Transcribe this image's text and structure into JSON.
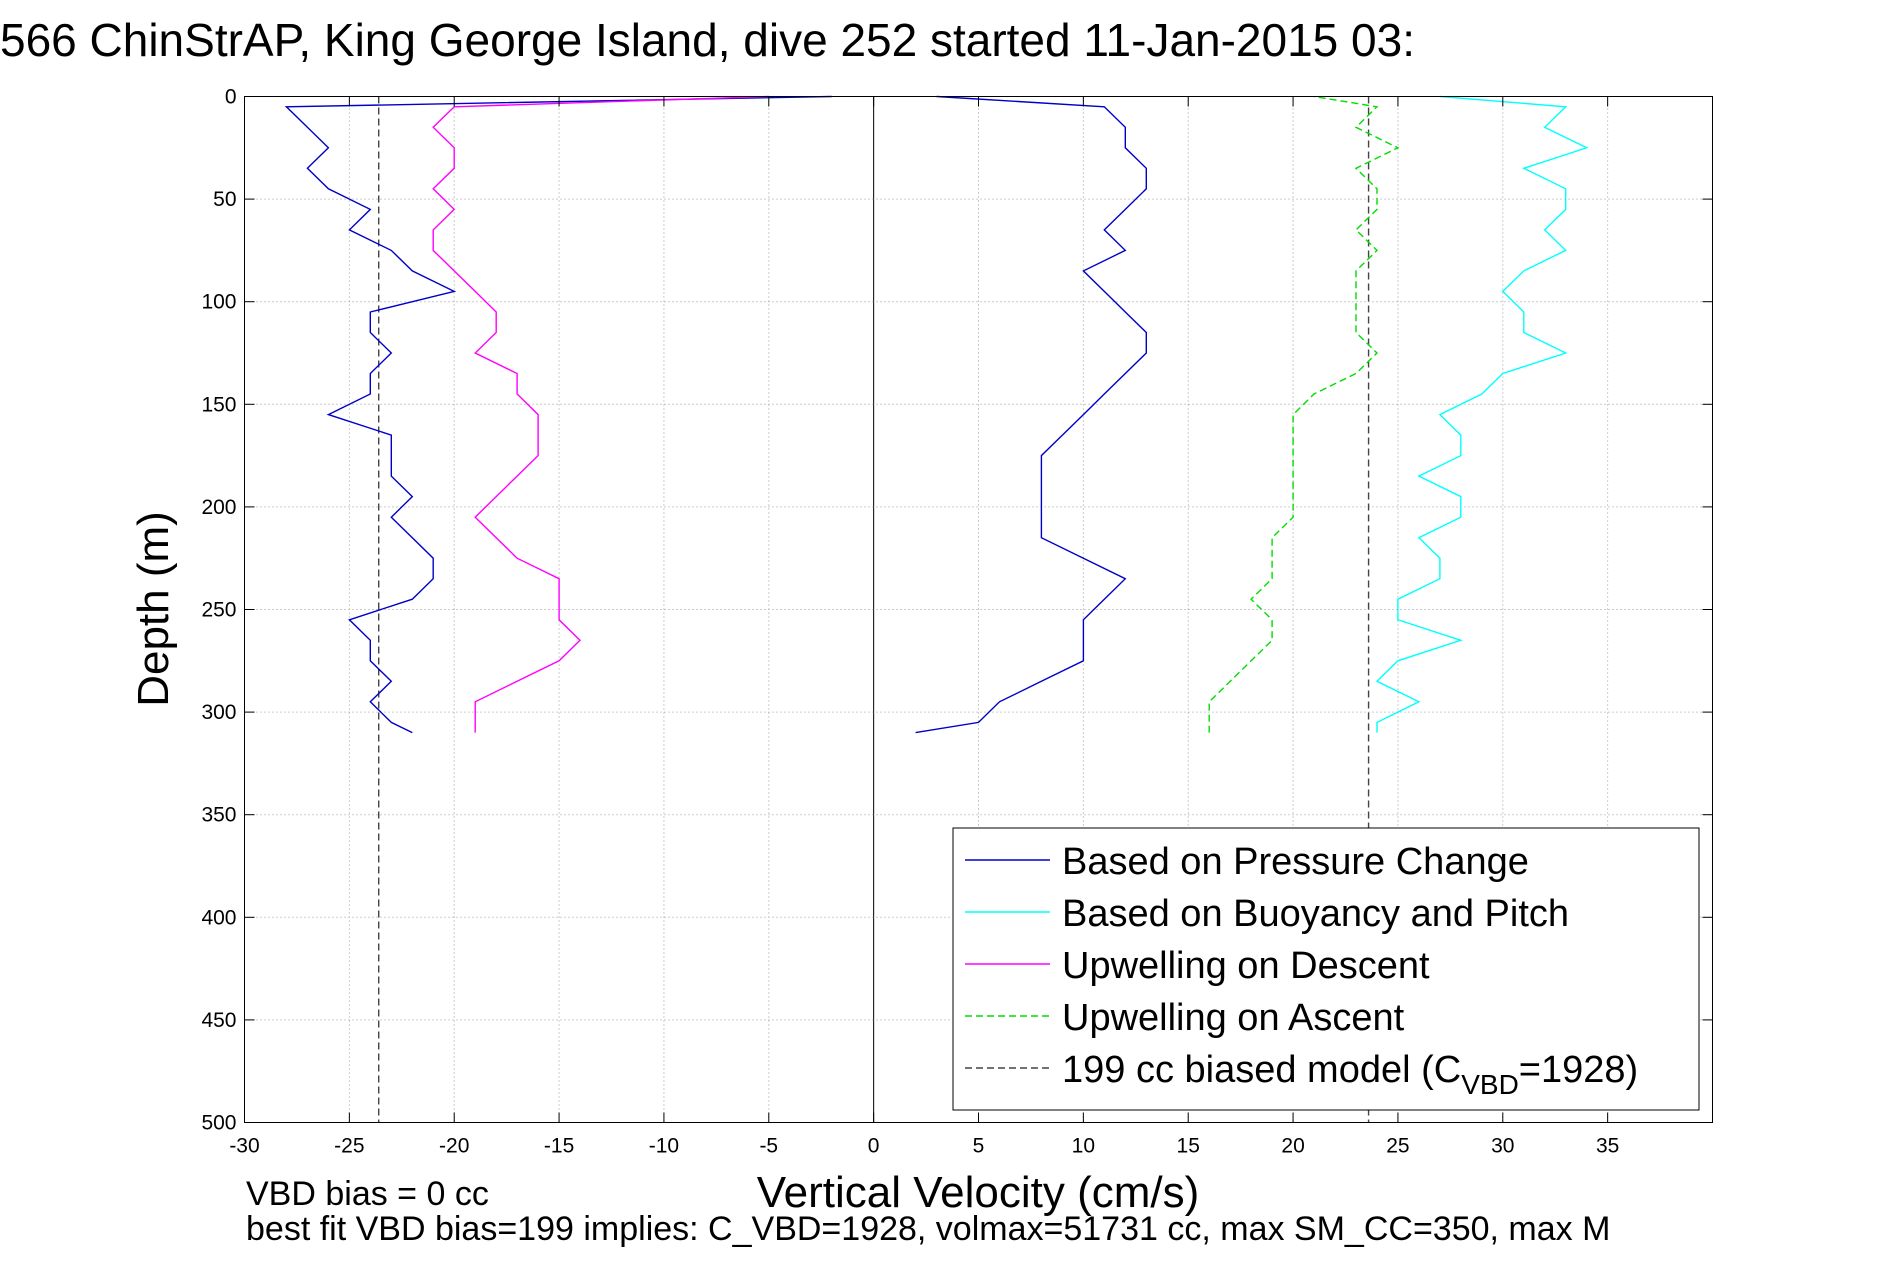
{
  "chart_data": {
    "type": "line",
    "title": "566 ChinStrAP, King George Island, dive 252 started 11-Jan-2015 03:",
    "xlabel": "Vertical Velocity (cm/s)",
    "ylabel": "Depth (m)",
    "xlim": [
      -30,
      40
    ],
    "ylim": [
      0,
      500
    ],
    "y_reversed": true,
    "grid": true,
    "legend_position": "bottom-right",
    "x_ticks": [
      "-30",
      "-25",
      "-20",
      "-15",
      "-10",
      "-5",
      "0",
      "5",
      "10",
      "15",
      "20",
      "25",
      "30",
      "35"
    ],
    "y_ticks": [
      "0",
      "50",
      "100",
      "150",
      "200",
      "250",
      "300",
      "350",
      "400",
      "450",
      "500"
    ],
    "footer_lines": [
      "VBD bias = 0 cc",
      "best fit VBD bias=199 implies: C_VBD=1928, volmax=51731 cc, max SM_CC=350, max M"
    ],
    "series": [
      {
        "name": "Based on Pressure Change",
        "color": "#0000c8",
        "style": "solid",
        "descent": {
          "depth": [
            0,
            5,
            15,
            25,
            35,
            45,
            55,
            65,
            75,
            85,
            95,
            105,
            115,
            125,
            135,
            145,
            155,
            165,
            175,
            185,
            195,
            205,
            215,
            225,
            235,
            245,
            255,
            265,
            275,
            285,
            295,
            305,
            310
          ],
          "velocity": [
            -2,
            -28,
            -27,
            -26,
            -27,
            -26,
            -24,
            -25,
            -23,
            -22,
            -20,
            -24,
            -24,
            -23,
            -24,
            -24,
            -26,
            -23,
            -23,
            -23,
            -22,
            -23,
            -22,
            -21,
            -21,
            -22,
            -25,
            -24,
            -24,
            -23,
            -24,
            -23,
            -22
          ]
        },
        "ascent": {
          "depth": [
            310,
            305,
            295,
            285,
            275,
            265,
            255,
            245,
            235,
            225,
            215,
            205,
            195,
            185,
            175,
            165,
            155,
            145,
            135,
            125,
            115,
            105,
            95,
            85,
            75,
            65,
            55,
            45,
            35,
            25,
            15,
            5,
            0
          ],
          "velocity": [
            2,
            5,
            6,
            8,
            10,
            10,
            10,
            11,
            12,
            10,
            8,
            8,
            8,
            8,
            8,
            9,
            10,
            11,
            12,
            13,
            13,
            12,
            11,
            10,
            12,
            11,
            12,
            13,
            13,
            12,
            12,
            11,
            3
          ]
        }
      },
      {
        "name": "Based on Buoyancy and Pitch",
        "color": "#00ffff",
        "style": "solid",
        "ascent": {
          "depth": [
            310,
            305,
            295,
            285,
            275,
            265,
            255,
            245,
            235,
            225,
            215,
            205,
            195,
            185,
            175,
            165,
            155,
            145,
            135,
            125,
            115,
            105,
            95,
            85,
            75,
            65,
            55,
            45,
            35,
            25,
            15,
            5,
            0
          ],
          "velocity": [
            24,
            24,
            26,
            24,
            25,
            28,
            25,
            25,
            27,
            27,
            26,
            28,
            28,
            26,
            28,
            28,
            27,
            29,
            30,
            33,
            31,
            31,
            30,
            31,
            33,
            32,
            33,
            33,
            31,
            34,
            32,
            33,
            27
          ]
        }
      },
      {
        "name": "Upwelling on Descent",
        "color": "#ff00ff",
        "style": "solid",
        "descent": {
          "depth": [
            0,
            5,
            15,
            25,
            35,
            45,
            55,
            65,
            75,
            85,
            95,
            105,
            115,
            125,
            135,
            145,
            155,
            165,
            175,
            185,
            195,
            205,
            215,
            225,
            235,
            245,
            255,
            265,
            275,
            285,
            295,
            305,
            310
          ],
          "velocity": [
            -5,
            -20,
            -21,
            -20,
            -20,
            -21,
            -20,
            -21,
            -21,
            -20,
            -19,
            -18,
            -18,
            -19,
            -17,
            -17,
            -16,
            -16,
            -16,
            -17,
            -18,
            -19,
            -18,
            -17,
            -15,
            -15,
            -15,
            -14,
            -15,
            -17,
            -19,
            -19,
            -19
          ]
        }
      },
      {
        "name": "Upwelling on Ascent",
        "color": "#00dd00",
        "style": "dashed",
        "ascent": {
          "depth": [
            310,
            305,
            295,
            285,
            275,
            265,
            255,
            245,
            235,
            225,
            215,
            205,
            195,
            185,
            175,
            165,
            155,
            145,
            135,
            125,
            115,
            105,
            95,
            85,
            75,
            65,
            55,
            45,
            35,
            25,
            15,
            5,
            0
          ],
          "velocity": [
            16,
            16,
            16,
            17,
            18,
            19,
            19,
            18,
            19,
            19,
            19,
            20,
            20,
            20,
            20,
            20,
            20,
            21,
            23,
            24,
            23,
            23,
            23,
            23,
            24,
            23,
            24,
            24,
            23,
            25,
            23,
            24,
            21
          ]
        }
      },
      {
        "name": "199 cc biased model (C",
        "name_sub": "VBD",
        "name_tail": "=1928)",
        "color": "#444444",
        "style": "dashed",
        "vertical_lines_at_x": [
          -23.6,
          23.6
        ],
        "depth_range": [
          0,
          500
        ]
      }
    ]
  }
}
